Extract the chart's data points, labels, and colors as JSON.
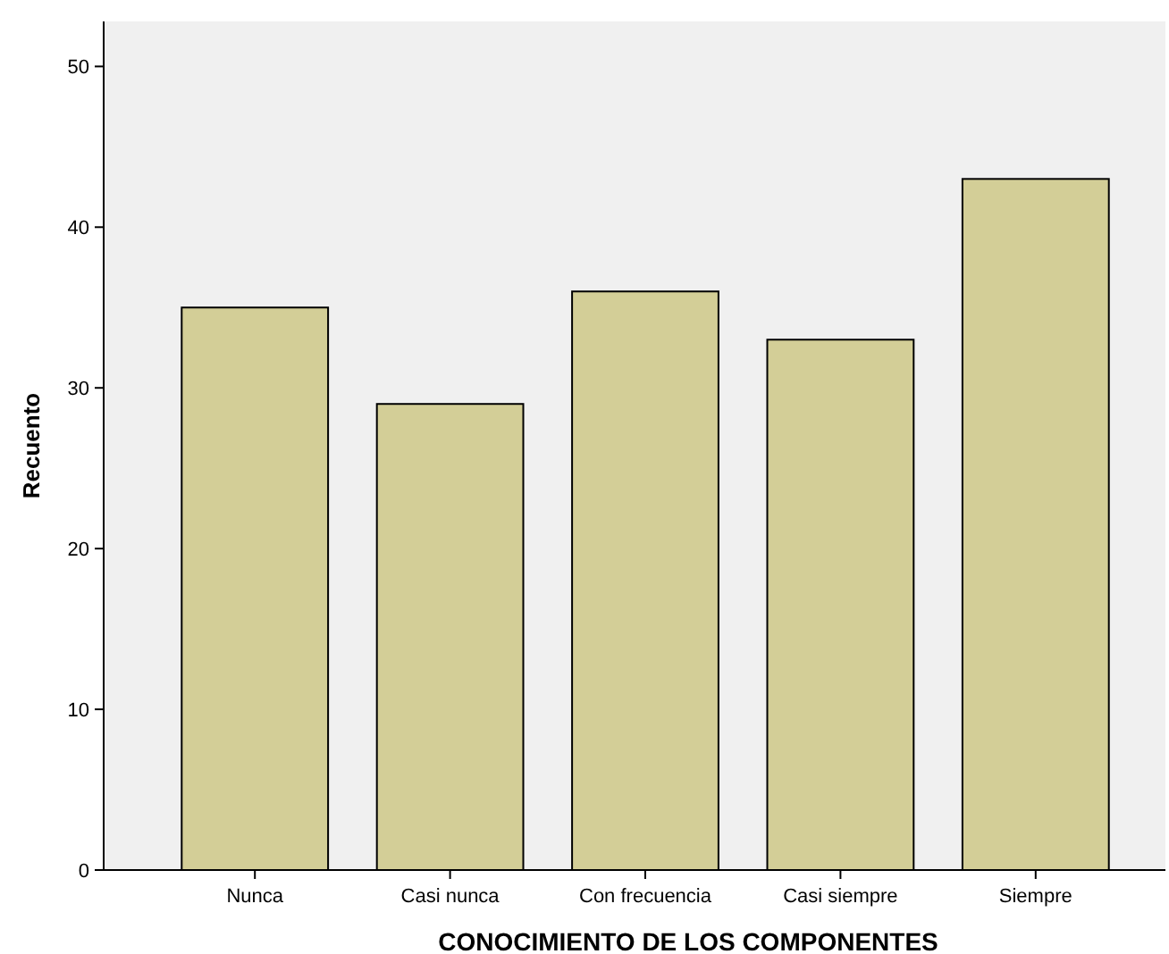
{
  "chart_data": {
    "type": "bar",
    "xlabel": "CONOCIMIENTO DE LOS COMPONENTES",
    "ylabel": "Recuento",
    "categories": [
      "Nunca",
      "Casi nunca",
      "Con frecuencia",
      "Casi siempre",
      "Siempre"
    ],
    "values": [
      35,
      29,
      36,
      33,
      43
    ],
    "color": "#d3ce97",
    "ylim": [
      0,
      52.8
    ],
    "yticks": [
      0,
      10,
      20,
      30,
      40,
      50
    ],
    "grid": false
  }
}
